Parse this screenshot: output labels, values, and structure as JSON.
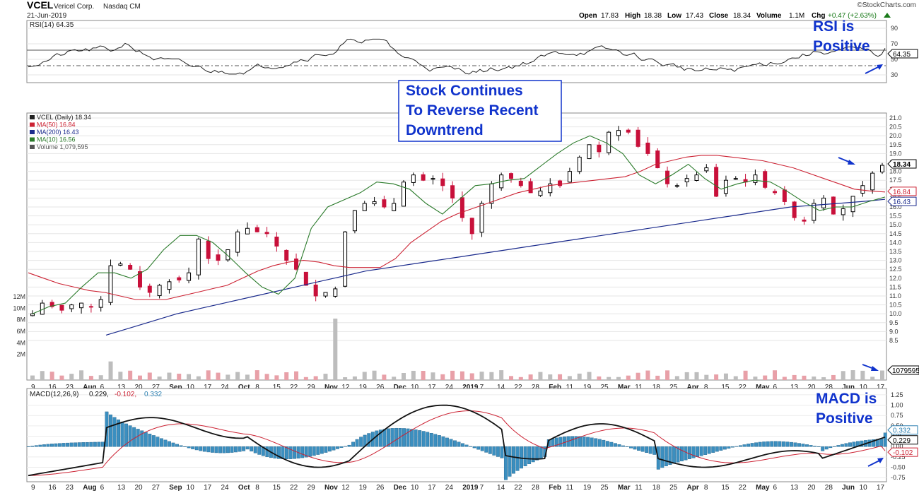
{
  "header": {
    "symbol": "VCEL",
    "company": "Vericel Corp.",
    "exchange": "Nasdaq CM",
    "date": "21-Jun-2019",
    "watermark": "©StockCharts.com",
    "ohlc": {
      "open_label": "Open",
      "open": "17.83",
      "high_label": "High",
      "high": "18.38",
      "low_label": "Low",
      "low": "17.43",
      "close_label": "Close",
      "close": "18.34",
      "volume_label": "Volume",
      "volume": "1.1M",
      "chg_label": "Chg",
      "chg": "+0.47 (+2.63%)"
    }
  },
  "rsi_panel": {
    "label": "RSI(14) 64.35",
    "value_badge": "64.35",
    "ticks": [
      "90",
      "70",
      "50",
      "30"
    ],
    "annotation": [
      "RSI is",
      "Positive"
    ]
  },
  "price_panel": {
    "legend": [
      {
        "text": "VCEL (Daily) 18.34",
        "color": "#222222"
      },
      {
        "text": "MA(50) 16.84",
        "color": "#cc2233"
      },
      {
        "text": "MA(200) 16.43",
        "color": "#1a2a8c"
      },
      {
        "text": "MA(10) 16.56",
        "color": "#2a7a2a"
      },
      {
        "text": "Volume 1,079,595",
        "color": "#555555"
      }
    ],
    "price_ticks": [
      "21.0",
      "20.5",
      "20.0",
      "19.5",
      "19.0",
      "18.5",
      "18.0",
      "17.5",
      "17.0",
      "16.5",
      "16.0",
      "15.5",
      "15.0",
      "14.5",
      "14.0",
      "13.5",
      "13.0",
      "12.5",
      "12.0",
      "11.5",
      "11.0",
      "10.5",
      "10.0",
      "9.5",
      "9.0",
      "8.5"
    ],
    "volume_ticks": [
      "12M",
      "10M",
      "8M",
      "6M",
      "4M",
      "2M"
    ],
    "badges": [
      {
        "text": "18.34",
        "color": "#000000"
      },
      {
        "text": "16.84",
        "color": "#cc2233"
      },
      {
        "text": "16.43",
        "color": "#1a2a8c"
      }
    ],
    "volume_badge": "1079595",
    "annotation": [
      "Stock Continues",
      "To Reverse Recent",
      "Downtrend"
    ]
  },
  "date_axis": [
    "9",
    "16",
    "23",
    "Aug",
    "6",
    "13",
    "20",
    "27",
    "Sep",
    "10",
    "17",
    "24",
    "Oct",
    "8",
    "15",
    "22",
    "29",
    "Nov",
    "12",
    "19",
    "26",
    "Dec",
    "10",
    "17",
    "24",
    "2019",
    "7",
    "14",
    "22",
    "28",
    "Feb",
    "11",
    "19",
    "25",
    "Mar",
    "11",
    "18",
    "25",
    "Apr",
    "8",
    "15",
    "22",
    "May",
    "6",
    "13",
    "20",
    "28",
    "Jun",
    "10",
    "17"
  ],
  "macd_panel": {
    "label_prefix": "MACD(12,26,9)",
    "macd_value": "0.229,",
    "signal_value": "-0.102,",
    "hist_value": "0.332",
    "ticks": [
      "1.25",
      "1.00",
      "0.75",
      "0.50",
      "0.25",
      "0.00",
      "-0.25",
      "-0.50",
      "-0.75"
    ],
    "badges": [
      {
        "text": "0.332",
        "color": "#2a7fb0"
      },
      {
        "text": "0.229",
        "color": "#000000"
      },
      {
        "text": "-0.102",
        "color": "#cc2233"
      }
    ],
    "annotation": [
      "MACD is",
      "Positive"
    ]
  },
  "colors": {
    "accent_blue": "#1033cc",
    "up_candle": "#000000",
    "down_candle": "#c8103a",
    "ma50": "#cc2233",
    "ma200": "#1a2a8c",
    "ma10": "#2a7a2a",
    "macd_hist": "#3b8fc0"
  },
  "chart_data": {
    "type": "line",
    "title": "VCEL Vericel Corp. Nasdaq CM",
    "price_range": [
      8.5,
      21.0
    ],
    "series": [
      {
        "name": "VCEL (Daily)",
        "y": [
          10.0,
          10.6,
          10.4,
          10.2,
          10.5,
          10.6,
          10.4,
          10.8,
          12.7,
          12.8,
          12.5,
          11.5,
          11.2,
          11.6,
          11.8,
          11.9,
          12.3,
          14.2,
          13.1,
          13.0,
          13.6,
          14.6,
          14.8,
          14.6,
          14.5,
          13.8,
          13.0,
          12.5,
          11.6,
          11.0,
          11.2,
          11.4,
          14.6,
          15.8,
          16.2,
          16.3,
          16.0,
          16.2,
          17.4,
          17.8,
          17.5,
          17.6,
          17.2,
          16.5,
          15.4,
          14.5,
          16.2,
          17.3,
          17.8,
          17.6,
          17.2,
          16.8,
          16.9,
          17.3,
          17.2,
          18.0,
          18.8,
          19.5,
          19.1,
          20.2,
          20.3,
          20.2,
          19.4,
          19.0,
          18.2,
          17.3,
          17.2,
          17.6,
          17.8,
          18.2,
          16.6,
          17.5,
          17.6,
          17.4,
          17.8,
          17.1,
          16.8,
          16.3,
          15.4,
          15.2,
          16.2,
          16.5,
          15.6,
          15.9,
          16.6,
          17.2,
          17.9,
          18.34
        ]
      },
      {
        "name": "MA(50)",
        "y": [
          12.3,
          12.0,
          11.7,
          11.5,
          11.3,
          11.2,
          11.0,
          10.8,
          10.8,
          10.8,
          11.0,
          11.2,
          11.4,
          11.6,
          12.0,
          12.4,
          12.7,
          12.9,
          13.0,
          12.9,
          12.7,
          12.6,
          12.6,
          12.6,
          13.1,
          14.0,
          14.6,
          15.2,
          15.6,
          15.9,
          16.2,
          16.5,
          16.8,
          17.0,
          17.2,
          17.3,
          17.4,
          17.5,
          17.6,
          17.7,
          18.0,
          18.4,
          18.6,
          18.8,
          18.9,
          18.9,
          18.8,
          18.7,
          18.6,
          18.4,
          18.2,
          17.9,
          17.6,
          17.3,
          17.0,
          16.9,
          16.84
        ]
      },
      {
        "name": "MA(200)",
        "y": [
          8.8,
          9.2,
          9.6,
          10.0,
          10.3,
          10.6,
          10.9,
          11.2,
          11.5,
          11.8,
          12.1,
          12.4,
          12.6,
          12.8,
          13.0,
          13.2,
          13.4,
          13.6,
          13.8,
          14.0,
          14.2,
          14.4,
          14.6,
          14.8,
          15.0,
          15.2,
          15.4,
          15.6,
          15.8,
          16.0,
          16.1,
          16.2,
          16.3,
          16.43
        ]
      },
      {
        "name": "MA(10)",
        "y": [
          10.0,
          10.4,
          10.6,
          11.5,
          12.3,
          12.3,
          12.0,
          12.5,
          13.6,
          14.4,
          14.4,
          14.0,
          13.2,
          12.3,
          11.5,
          11.1,
          12.0,
          14.8,
          16.0,
          16.4,
          16.8,
          17.4,
          17.3,
          17.0,
          16.2,
          15.6,
          16.4,
          17.2,
          17.3,
          17.5,
          17.6,
          18.3,
          19.0,
          19.6,
          20.0,
          19.6,
          19.0,
          17.8,
          17.3,
          17.8,
          18.4,
          17.6,
          17.0,
          17.3,
          17.5,
          17.4,
          16.9,
          16.3,
          15.8,
          16.0,
          16.0,
          16.3,
          16.56
        ]
      }
    ],
    "volume_range": [
      0,
      12000000
    ],
    "volume_last": 1079595,
    "rsi": {
      "range": [
        30,
        90
      ],
      "last": 64.35
    },
    "macd": {
      "range": [
        -0.75,
        1.25
      ],
      "macd": 0.229,
      "signal": -0.102,
      "histogram": 0.332
    }
  }
}
